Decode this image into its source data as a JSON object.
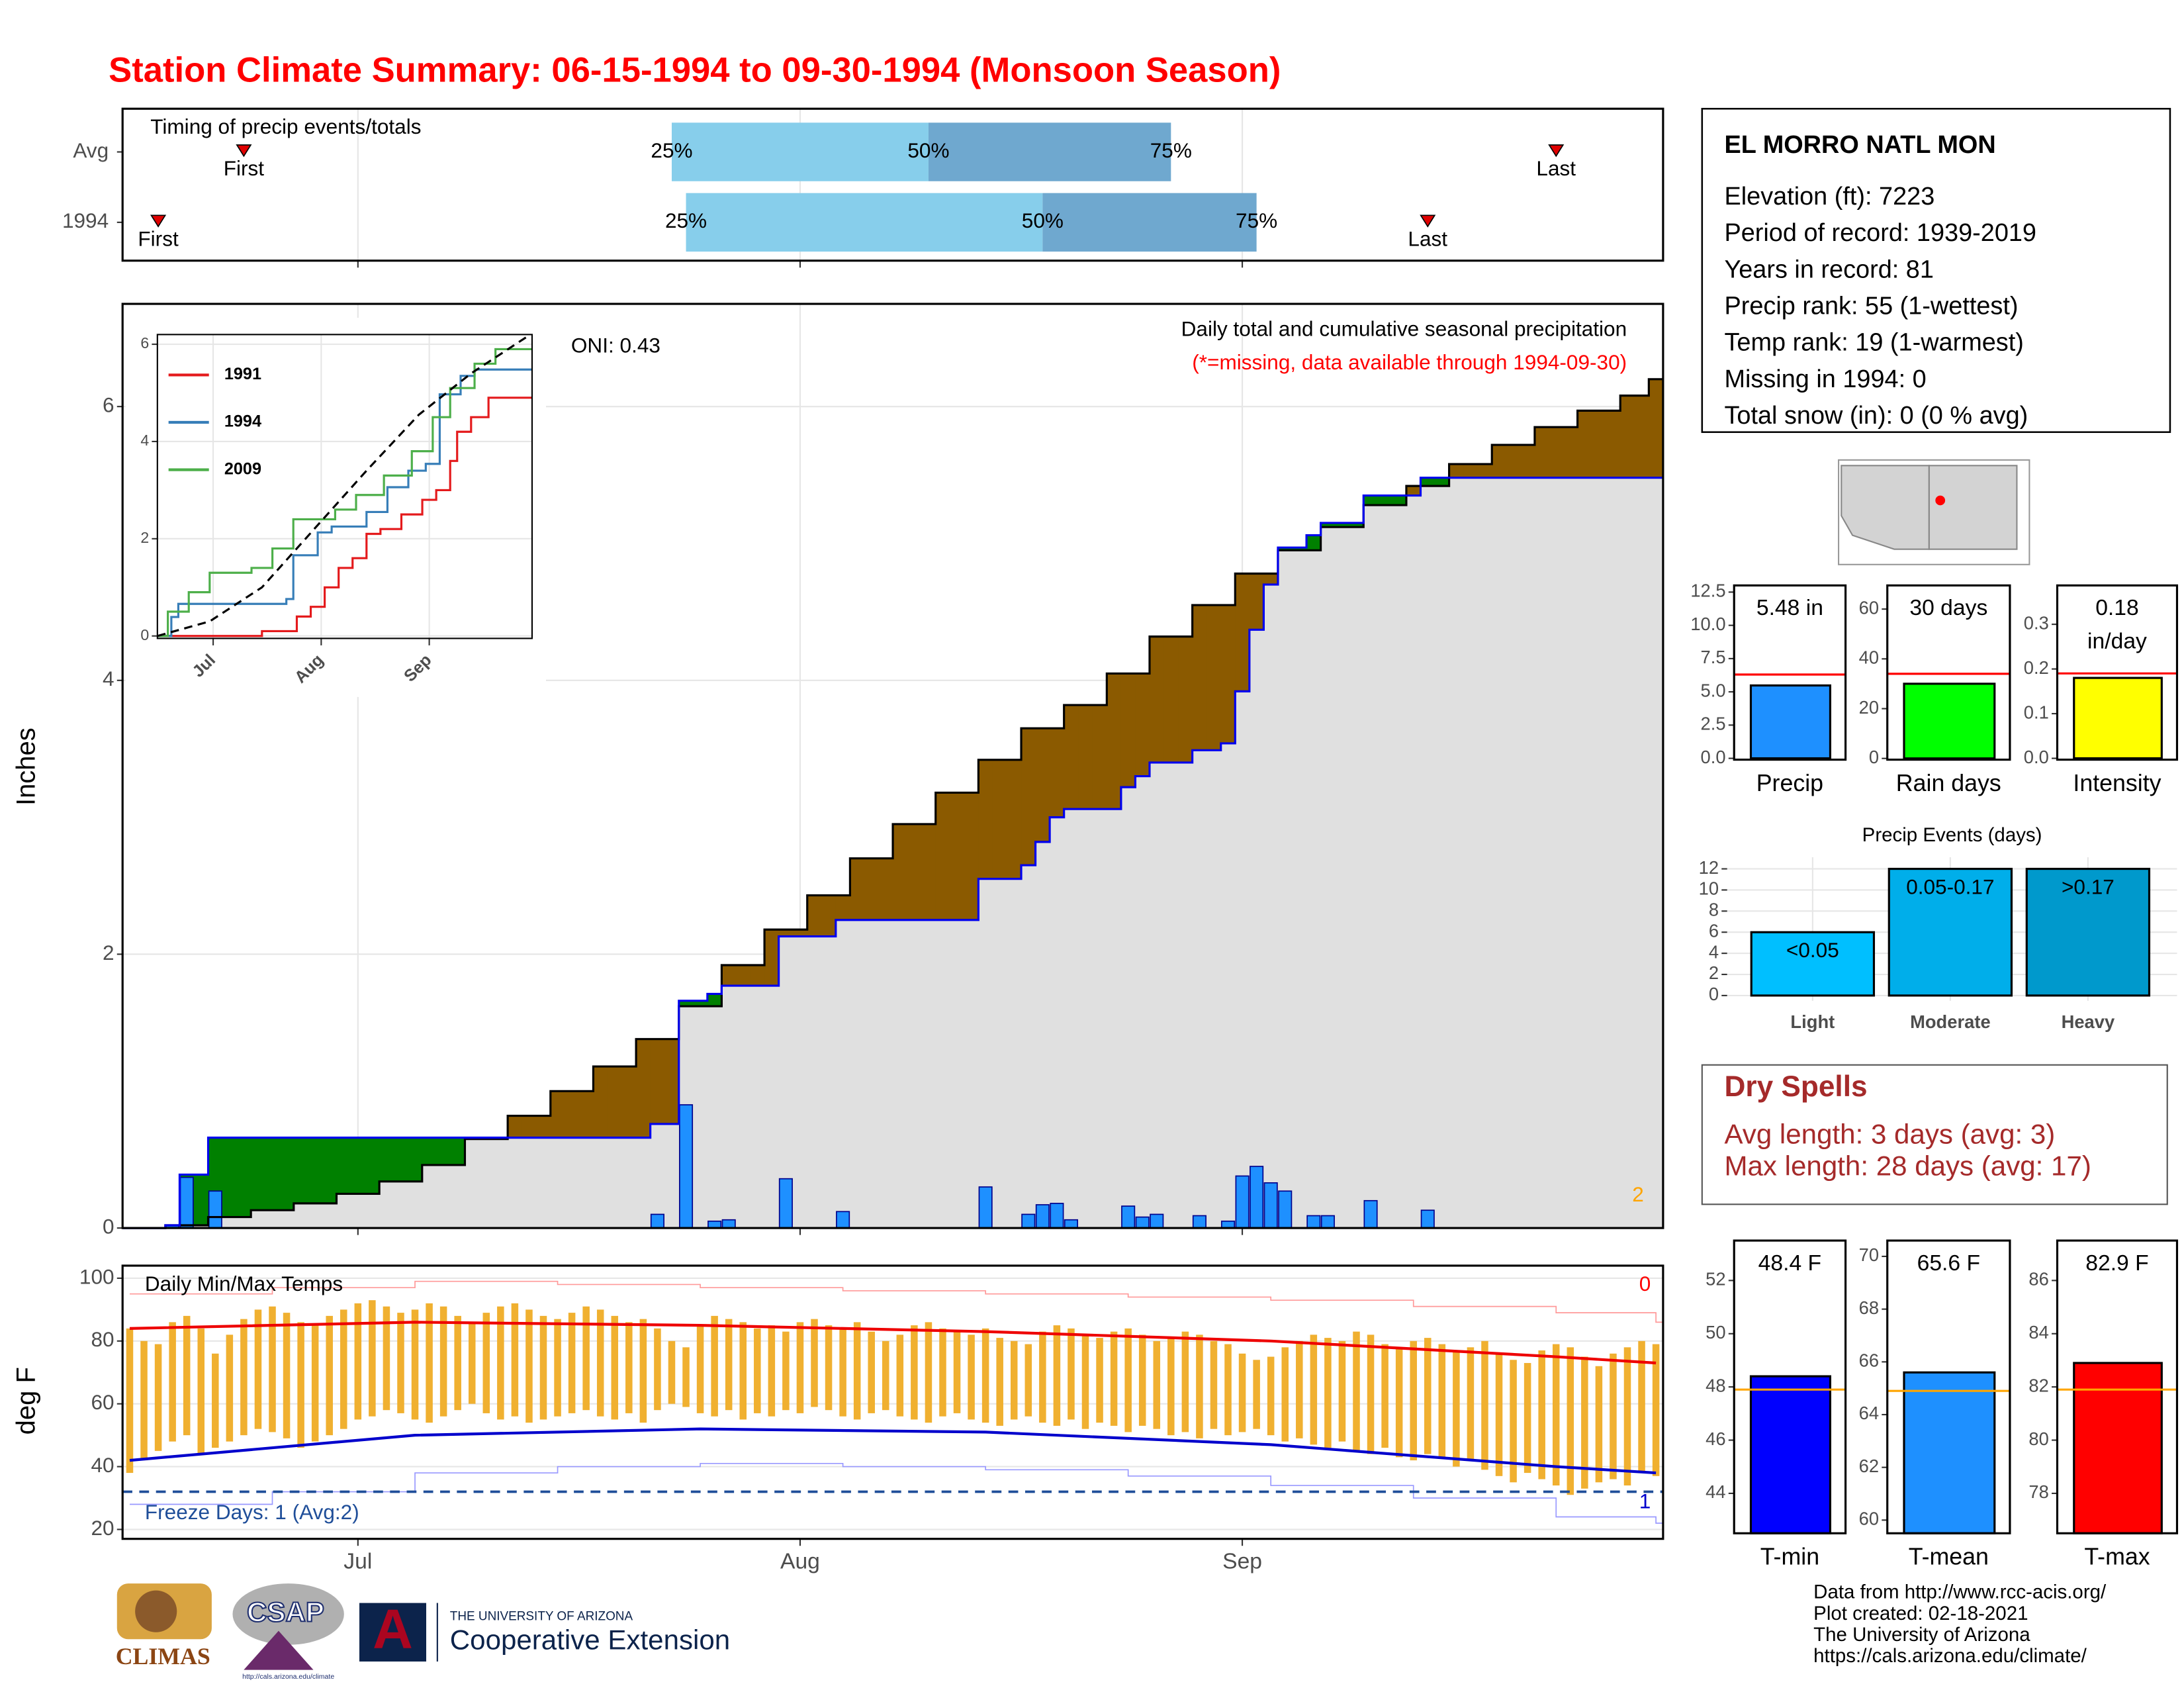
{
  "title": "Station Climate Summary: 06-15-1994 to 09-30-1994 (Monsoon Season)",
  "station": {
    "name": "EL MORRO NATL MON",
    "lines": [
      "Elevation (ft): 7223",
      "Period of record: 1939-2019",
      "Years in record: 81",
      "Precip rank: 55 (1-wettest)",
      "Temp rank: 19 (1-warmest)",
      "Missing in 1994: 0",
      "Total snow (in): 0 (0 % avg)"
    ]
  },
  "dry_spells": {
    "title": "Dry Spells",
    "lines": [
      "Avg length: 3 days (avg: 3)",
      "Max length: 28 days (avg: 17)"
    ]
  },
  "footer": [
    "Data from http://www.rcc-acis.org/",
    "Plot created: 02-18-2021",
    "The University of Arizona",
    "https://cals.arizona.edu/climate/"
  ],
  "logos": {
    "climas": "CLIMAS",
    "csap": "CSAP",
    "csap_url": "http://cals.arizona.edu/climate",
    "ua_letter": "A",
    "ua_name": "THE UNIVERSITY OF ARIZONA",
    "extension": "Cooperative Extension"
  },
  "chart_data": [
    {
      "type": "timing",
      "title": "Timing of precip events/totals",
      "categories": [
        "Avg",
        "1994"
      ],
      "xlim": [
        -0.5,
        107.5
      ],
      "xticks": [
        16,
        47,
        78
      ],
      "grid": true,
      "series": [
        {
          "name": "First",
          "values": [
            8,
            2
          ]
        },
        {
          "name": "25%",
          "values": [
            38,
            39
          ]
        },
        {
          "name": "50%",
          "values": [
            56,
            64
          ]
        },
        {
          "name": "75%",
          "values": [
            73,
            79
          ]
        },
        {
          "name": "Last",
          "values": [
            100,
            91
          ]
        }
      ],
      "colors": [
        "#87ceeb",
        "#6fa8cf"
      ],
      "marker_color": "#e00000"
    },
    {
      "type": "cumulative",
      "title": "Daily total and cumulative seasonal precipitation",
      "subtitle": "(*=missing, data available through 1994-09-30)",
      "annotation": "ONI: 0.43",
      "corner_label": "2",
      "ylabel": "Inches",
      "xlim": [
        -0.5,
        107.5
      ],
      "xticks": [
        16,
        47,
        78
      ],
      "ylim": [
        0,
        6.75
      ],
      "yticks": [
        0,
        2,
        4,
        6
      ],
      "grid": true,
      "daily": {
        "color": "#1e90ff",
        "values": [
          0,
          0,
          0,
          0.02,
          0.37,
          0,
          0.27,
          0,
          0,
          0,
          0,
          0,
          0,
          0,
          0,
          0,
          0,
          0,
          0,
          0,
          0,
          0,
          0,
          0,
          0,
          0,
          0,
          0,
          0,
          0,
          0,
          0,
          0,
          0,
          0,
          0,
          0,
          0.1,
          0,
          0.9,
          0,
          0.05,
          0.06,
          0,
          0,
          0,
          0.36,
          0,
          0,
          0,
          0.12,
          0,
          0,
          0,
          0,
          0,
          0,
          0,
          0,
          0,
          0.3,
          0,
          0,
          0.1,
          0.17,
          0.18,
          0.06,
          0,
          0,
          0,
          0.16,
          0.08,
          0.1,
          0,
          0,
          0.09,
          0,
          0.05,
          0.38,
          0.45,
          0.33,
          0.27,
          0,
          0.09,
          0.09,
          0,
          0,
          0.2,
          0,
          0,
          0,
          0.13,
          0,
          0,
          0,
          0,
          0,
          0,
          0,
          0,
          0,
          0,
          0,
          0,
          0,
          0,
          0,
          0
        ]
      },
      "cumulative": {
        "color": "#0000ee",
        "x": [
          0,
          3,
          4,
          6,
          37,
          39,
          41,
          42,
          46,
          50,
          60,
          63,
          64,
          65,
          66,
          70,
          71,
          72,
          75,
          77,
          78,
          79,
          80,
          81,
          83,
          84,
          87,
          91,
          107
        ],
        "values": [
          0,
          0.02,
          0.39,
          0.66,
          0.76,
          1.66,
          1.71,
          1.77,
          2.13,
          2.25,
          2.55,
          2.65,
          2.82,
          3.0,
          3.06,
          3.22,
          3.3,
          3.4,
          3.49,
          3.54,
          3.92,
          4.37,
          4.7,
          4.97,
          5.06,
          5.15,
          5.35,
          5.48,
          5.48
        ]
      },
      "average": {
        "color": "#000000",
        "x": [
          0,
          3,
          6,
          9,
          12,
          15,
          18,
          21,
          24,
          27,
          30,
          33,
          36,
          39,
          42,
          45,
          48,
          51,
          54,
          57,
          60,
          63,
          66,
          69,
          72,
          75,
          78,
          81,
          84,
          87,
          90,
          93,
          96,
          99,
          102,
          105,
          107
        ],
        "values": [
          0,
          0.02,
          0.08,
          0.13,
          0.18,
          0.25,
          0.34,
          0.46,
          0.65,
          0.82,
          1.0,
          1.18,
          1.38,
          1.62,
          1.92,
          2.18,
          2.43,
          2.7,
          2.95,
          3.18,
          3.42,
          3.65,
          3.82,
          4.05,
          4.32,
          4.55,
          4.78,
          4.95,
          5.12,
          5.28,
          5.42,
          5.58,
          5.72,
          5.85,
          5.97,
          6.08,
          6.2
        ]
      },
      "surplus_color": "#008000",
      "deficit_color": "#8b5a00",
      "area_color": "#e0e0e0"
    },
    {
      "type": "multi_step",
      "xlim": [
        0,
        107.5
      ],
      "ylim": [
        -0.05,
        6.2
      ],
      "yticks": [
        0,
        2,
        4,
        6
      ],
      "grid": true,
      "xticks": [
        {
          "value": 16,
          "label": "Jul"
        },
        {
          "value": 47,
          "label": "Aug"
        },
        {
          "value": 78,
          "label": "Sep"
        }
      ],
      "series": [
        {
          "name": "1991",
          "color": "#e41a1c",
          "x": [
            0,
            30,
            40,
            44,
            48,
            52,
            56,
            60,
            64,
            70,
            76,
            80,
            84,
            86,
            90,
            95,
            107
          ],
          "values": [
            0,
            0.1,
            0.4,
            0.6,
            1.0,
            1.4,
            1.6,
            2.1,
            2.2,
            2.5,
            2.8,
            3.0,
            3.6,
            4.2,
            4.5,
            4.9,
            4.9
          ]
        },
        {
          "name": "1994",
          "color": "#377eb8",
          "x": [
            0,
            4,
            6,
            37,
            39,
            46,
            50,
            60,
            66,
            72,
            77,
            81,
            87,
            91,
            107
          ],
          "values": [
            0,
            0.39,
            0.66,
            0.76,
            1.66,
            2.13,
            2.25,
            2.55,
            3.06,
            3.4,
            3.54,
            4.97,
            5.35,
            5.48,
            5.48
          ]
        },
        {
          "name": "2009",
          "color": "#4daf4a",
          "x": [
            0,
            3,
            9,
            15,
            27,
            33,
            39,
            51,
            57,
            65,
            73,
            79,
            84,
            91,
            97,
            107
          ],
          "values": [
            0,
            0.5,
            0.9,
            1.3,
            1.4,
            1.8,
            2.4,
            2.6,
            2.9,
            3.3,
            3.8,
            4.5,
            5.1,
            5.6,
            5.9,
            5.9
          ]
        }
      ],
      "average": {
        "color": "#000000",
        "x": [
          0,
          15,
          30,
          45,
          60,
          75,
          90,
          107
        ],
        "values": [
          0,
          0.3,
          1.0,
          2.2,
          3.4,
          4.55,
          5.4,
          6.2
        ]
      }
    },
    {
      "type": "temperature",
      "title": "Daily Min/Max Temps",
      "ylabel": "deg F",
      "annotation": "Freeze Days: 1 (Avg:2)",
      "record_highs": 0,
      "record_lows": 1,
      "xlim": [
        -0.5,
        107.5
      ],
      "xticks": [
        {
          "value": 16,
          "label": "Jul"
        },
        {
          "value": 47,
          "label": "Aug"
        },
        {
          "value": 78,
          "label": "Sep"
        }
      ],
      "ylim": [
        17,
        104
      ],
      "yticks": [
        20,
        40,
        60,
        80,
        100
      ],
      "grid": true,
      "bar_color": "#f0b030",
      "max": {
        "values": [
          84,
          80,
          79,
          86,
          88,
          84,
          76,
          82,
          87,
          90,
          91,
          89,
          86,
          85,
          88,
          90,
          92,
          93,
          91,
          89,
          90,
          92,
          91,
          88,
          86,
          89,
          91,
          92,
          90,
          88,
          87,
          89,
          91,
          90,
          88,
          86,
          87,
          84,
          80,
          78,
          85,
          88,
          87,
          86,
          84,
          85,
          83,
          86,
          87,
          85,
          84,
          86,
          83,
          80,
          82,
          85,
          86,
          84,
          83,
          82,
          84,
          81,
          80,
          79,
          83,
          85,
          84,
          82,
          81,
          83,
          84,
          82,
          80,
          81,
          83,
          82,
          80,
          79,
          76,
          74,
          75,
          78,
          80,
          82,
          81,
          80,
          83,
          82,
          79,
          78,
          80,
          81,
          79,
          77,
          78,
          80,
          76,
          74,
          73,
          77,
          79,
          78,
          75,
          72,
          76,
          78,
          80,
          79
        ]
      },
      "min": {
        "values": [
          38,
          42,
          45,
          48,
          50,
          44,
          46,
          48,
          50,
          52,
          51,
          49,
          46,
          48,
          50,
          52,
          55,
          56,
          58,
          57,
          55,
          54,
          56,
          58,
          60,
          57,
          55,
          56,
          54,
          55,
          56,
          57,
          58,
          56,
          55,
          57,
          54,
          58,
          60,
          59,
          57,
          56,
          58,
          55,
          57,
          56,
          58,
          57,
          59,
          58,
          56,
          55,
          57,
          58,
          56,
          55,
          54,
          56,
          57,
          55,
          54,
          53,
          55,
          56,
          54,
          53,
          55,
          52,
          54,
          53,
          51,
          53,
          52,
          50,
          51,
          49,
          52,
          50,
          51,
          52,
          50,
          48,
          49,
          47,
          46,
          48,
          45,
          44,
          46,
          43,
          42,
          44,
          43,
          40,
          42,
          39,
          37,
          35,
          38,
          36,
          34,
          31,
          33,
          35,
          36,
          34,
          38,
          37
        ]
      },
      "normal_max": {
        "color": "#ee0000",
        "x": [
          0,
          20,
          40,
          60,
          80,
          100,
          107
        ],
        "values": [
          84,
          86,
          85,
          83,
          80,
          75,
          73
        ]
      },
      "normal_min": {
        "color": "#0000cc",
        "x": [
          0,
          20,
          40,
          60,
          80,
          100,
          107
        ],
        "values": [
          42,
          50,
          52,
          51,
          47,
          40,
          38
        ]
      },
      "record_max": {
        "color": "#ff9999",
        "x": [
          0,
          10,
          20,
          30,
          40,
          50,
          60,
          70,
          80,
          90,
          100,
          107
        ],
        "values": [
          95,
          97,
          99,
          98,
          97,
          96,
          95,
          94,
          93,
          91,
          89,
          86
        ]
      },
      "record_min": {
        "color": "#9999ff",
        "x": [
          0,
          10,
          20,
          30,
          40,
          50,
          60,
          70,
          80,
          90,
          100,
          107
        ],
        "values": [
          28,
          32,
          38,
          40,
          41,
          40,
          39,
          37,
          34,
          30,
          24,
          22
        ]
      },
      "freeze": 32,
      "freeze_color": "#1f4e99"
    },
    {
      "type": "single_bar",
      "label": "Precip",
      "values": [
        5.48
      ],
      "value_labels": [
        "5.48 in"
      ],
      "average": 6.3,
      "ylim": [
        -0.1,
        13
      ],
      "yticks": [
        {
          "value": 0,
          "label": "0.0"
        },
        2.5,
        {
          "value": 5,
          "label": "5.0"
        },
        7.5,
        {
          "value": 10,
          "label": "10.0"
        },
        12.5
      ],
      "color": "#1e90ff",
      "average_color": "#ff0000"
    },
    {
      "type": "single_bar",
      "label": "Rain days",
      "values": [
        30
      ],
      "value_labels": [
        "30 days"
      ],
      "average": 34,
      "ylim": [
        -0.5,
        69.5
      ],
      "yticks": [
        0,
        20,
        40,
        60
      ],
      "color": "#00ff00",
      "average_color": "#ff0000"
    },
    {
      "type": "single_bar",
      "label": "Intensity",
      "values": [
        0.18
      ],
      "value_labels": [
        "0.18\nin/day"
      ],
      "average": 0.19,
      "ylim": [
        -0.003,
        0.387
      ],
      "yticks": [
        {
          "value": 0,
          "label": "0.0"
        },
        0.1,
        0.2,
        0.3
      ],
      "color": "#ffff00",
      "average_color": "#ff0000"
    },
    {
      "type": "bar",
      "title": "Precip Events (days)",
      "categories": [
        "Light",
        "Moderate",
        "Heavy"
      ],
      "values": [
        6,
        12,
        12
      ],
      "bar_labels": [
        "<0.05",
        "0.05-0.17",
        ">0.17"
      ],
      "colors": [
        "#00bfff",
        "#00aeea",
        "#0099cc"
      ],
      "ylim": [
        -0.5,
        13.1
      ],
      "yticks": [
        0,
        2,
        4,
        6,
        8,
        10,
        12
      ],
      "grid": true
    },
    {
      "type": "single_bar",
      "label": "T-min",
      "values": [
        48.4
      ],
      "value_labels": [
        "48.4 F"
      ],
      "average": 47.9,
      "ylim": [
        42.5,
        53.5
      ],
      "yticks": [
        44,
        46,
        48,
        50,
        52
      ],
      "color": "#0000ff",
      "average_color": "#ffa500"
    },
    {
      "type": "single_bar",
      "label": "T-mean",
      "values": [
        65.6
      ],
      "value_labels": [
        "65.6 F"
      ],
      "average": 64.9,
      "ylim": [
        59.5,
        70.6
      ],
      "yticks": [
        60,
        62,
        64,
        66,
        68,
        70
      ],
      "color": "#1e90ff",
      "average_color": "#ffa500"
    },
    {
      "type": "single_bar",
      "label": "T-max",
      "values": [
        82.9
      ],
      "value_labels": [
        "82.9 F"
      ],
      "average": 81.9,
      "ylim": [
        76.5,
        87.5
      ],
      "yticks": [
        78,
        80,
        82,
        84,
        86
      ],
      "color": "#ff0000",
      "average_color": "#ffa500"
    }
  ]
}
